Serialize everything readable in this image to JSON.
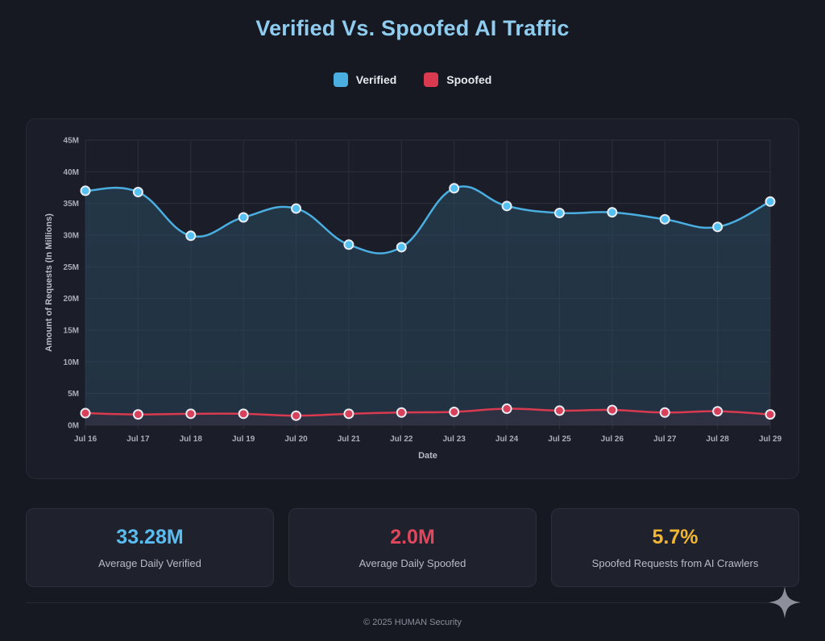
{
  "page": {
    "title": "Verified Vs. Spoofed AI Traffic",
    "footer": "© 2025 HUMAN Security"
  },
  "legend": [
    {
      "label": "Verified",
      "color": "#4aaee0"
    },
    {
      "label": "Spoofed",
      "color": "#d93a4f"
    }
  ],
  "stats": [
    {
      "value": "33.28M",
      "label": "Average Daily Verified",
      "color": "#5bbcf0"
    },
    {
      "value": "2.0M",
      "label": "Average Daily Spoofed",
      "color": "#e0475d"
    },
    {
      "value": "5.7%",
      "label": "Spoofed Requests from AI Crawlers",
      "color": "#f2b632"
    }
  ],
  "chart_data": {
    "type": "line",
    "title": "Verified Vs. Spoofed AI Traffic",
    "xlabel": "Date",
    "ylabel": "Amount of Requests (In Millions)",
    "categories": [
      "Jul 16",
      "Jul 17",
      "Jul 18",
      "Jul 19",
      "Jul 20",
      "Jul 21",
      "Jul 22",
      "Jul 23",
      "Jul 24",
      "Jul 25",
      "Jul 26",
      "Jul 27",
      "Jul 28",
      "Jul 29"
    ],
    "ylim": [
      0,
      45
    ],
    "yticks": [
      0,
      5,
      10,
      15,
      20,
      25,
      30,
      35,
      40,
      45
    ],
    "ytick_labels": [
      "0M",
      "5M",
      "10M",
      "15M",
      "20M",
      "25M",
      "30M",
      "35M",
      "40M",
      "45M"
    ],
    "grid": true,
    "legend_position": "top-center",
    "series": [
      {
        "name": "Verified",
        "color": "#4aaee0",
        "fill": true,
        "values": [
          37.0,
          36.8,
          29.9,
          32.8,
          34.2,
          28.5,
          28.1,
          37.4,
          34.6,
          33.5,
          33.6,
          32.5,
          31.3,
          35.3
        ]
      },
      {
        "name": "Spoofed",
        "color": "#d93a4f",
        "fill": true,
        "values": [
          1.9,
          1.7,
          1.8,
          1.8,
          1.5,
          1.8,
          2.0,
          2.1,
          2.6,
          2.3,
          2.4,
          2.0,
          2.2,
          1.7
        ]
      }
    ]
  }
}
